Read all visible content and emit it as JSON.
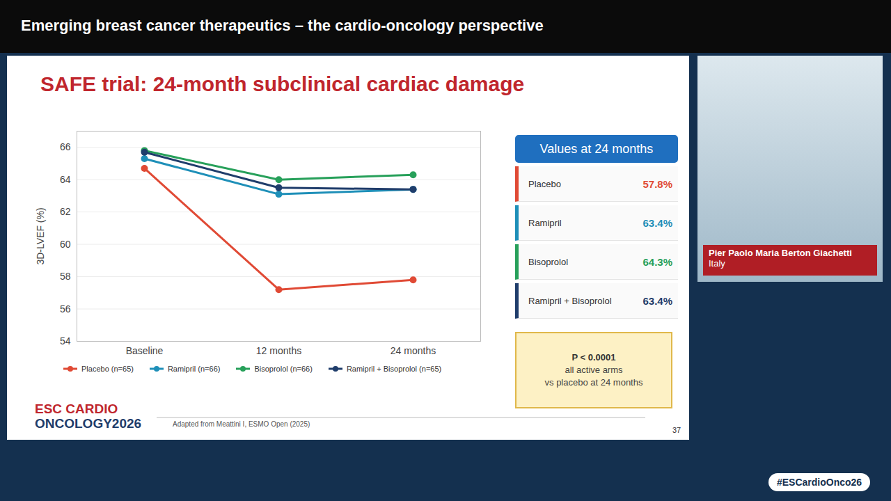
{
  "header": "Emerging breast cancer therapeutics – the cardio-oncology perspective",
  "chart_data": {
    "type": "line",
    "title": "SAFE trial: 24-month subclinical cardiac damage",
    "ylabel": "3D-LVEF (%)",
    "categories": [
      "Baseline",
      "12 months",
      "24 months"
    ],
    "series": [
      {
        "name": "Placebo (n=65)",
        "color": "#e04a35",
        "values": [
          64.7,
          57.2,
          57.8
        ]
      },
      {
        "name": "Ramipril (n=66)",
        "color": "#1e8fb8",
        "values": [
          65.3,
          63.1,
          63.4
        ]
      },
      {
        "name": "Bisoprolol (n=66)",
        "color": "#27a05a",
        "values": [
          65.8,
          64.0,
          64.3
        ]
      },
      {
        "name": "Ramipril + Bisoprolol (n=65)",
        "color": "#1f3d6b",
        "values": [
          65.7,
          63.5,
          63.4
        ]
      }
    ],
    "ylim": [
      54,
      67
    ],
    "yticks": [
      54,
      56,
      58,
      60,
      62,
      64,
      66
    ],
    "grid": true,
    "legend": "bottom",
    "marker": "circle"
  },
  "panel": {
    "title": "Values at 24 months",
    "rows": [
      {
        "label": "Placebo",
        "value_label": "57.8%",
        "color": "#e04a35"
      },
      {
        "label": "Ramipril",
        "value_label": "63.4%",
        "color": "#1e8fb8"
      },
      {
        "label": "Bisoprolol",
        "value_label": "64.3%",
        "color": "#27a05a"
      },
      {
        "label": "Ramipril + Bisoprolol",
        "value_label": "63.4%",
        "color": "#1f3d6b"
      }
    ]
  },
  "pvalue_box": [
    "P < 0.0001",
    "all active arms",
    "vs placebo at 24 months"
  ],
  "logo": [
    "ESC CARDIO",
    "ONCOLOGY2026"
  ],
  "source": "Adapted from Meattini I, ESMO Open (2025)",
  "slide_number": "37",
  "speaker": {
    "name": "Pier Paolo Maria Berton Giachetti",
    "country": "Italy"
  },
  "hashtag": "#ESCardioOnco26"
}
